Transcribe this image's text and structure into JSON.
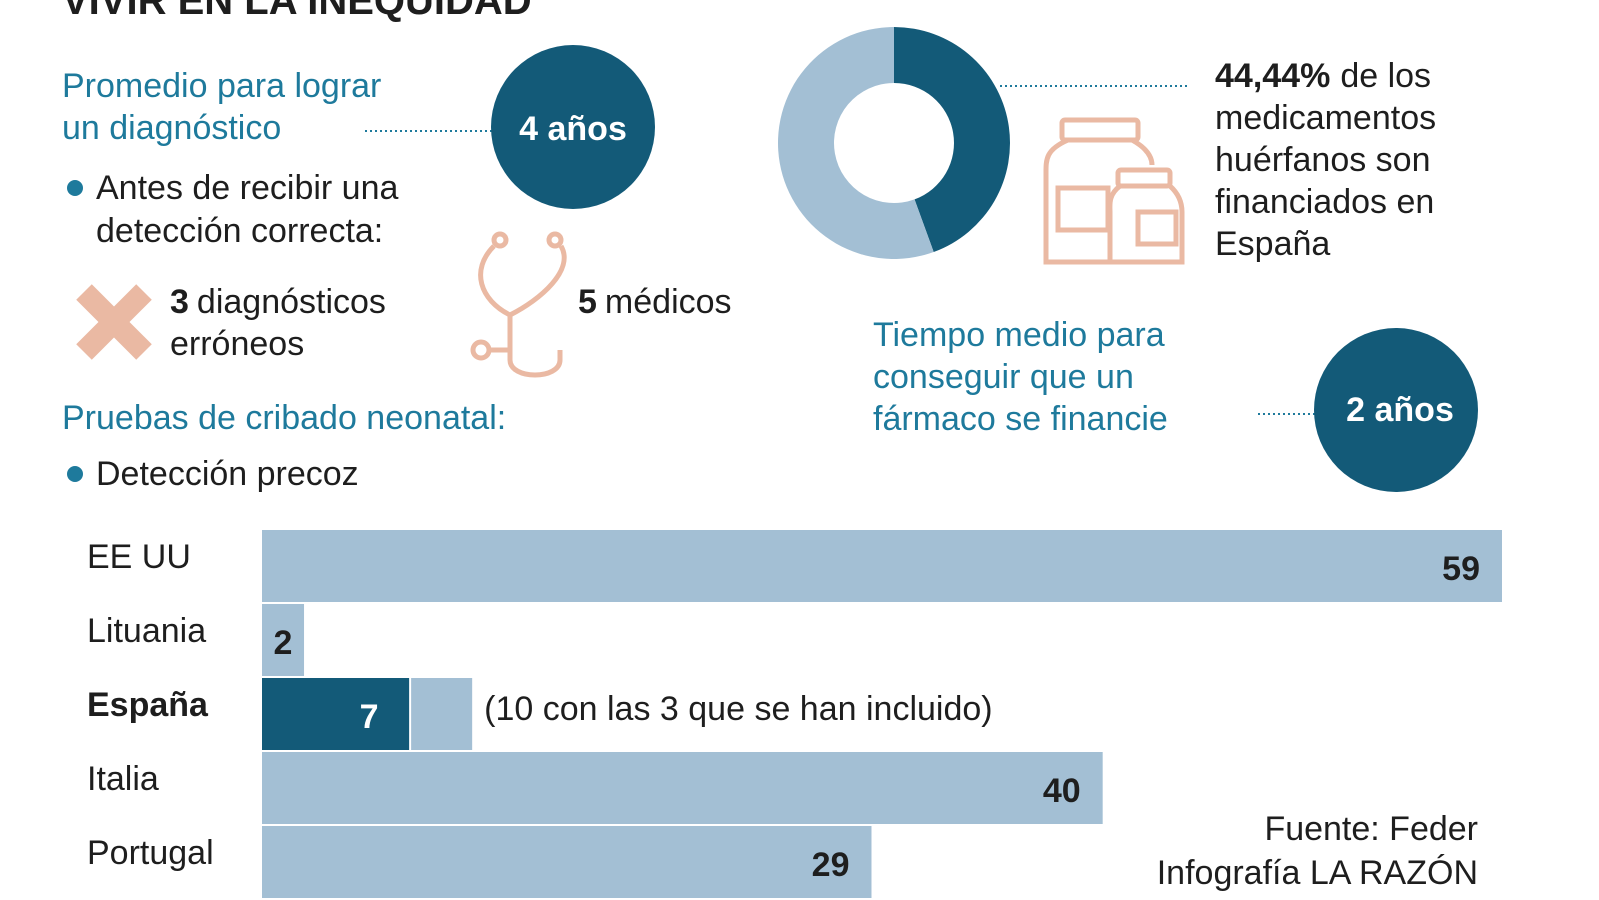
{
  "title": "VIVIR EN LA INEQUIDAD",
  "diagnosis": {
    "heading": [
      "Promedio para lograr",
      "un diagnóstico"
    ],
    "badge": "4 años",
    "bullet": [
      "Antes de recibir una",
      "detección correcta:"
    ],
    "errors_number": "3",
    "errors_text": [
      "diagnósticos",
      "erróneos"
    ],
    "doctors_number": "5",
    "doctors_text": "médicos"
  },
  "screening": {
    "heading": "Pruebas de cribado neonatal:",
    "bullet": "Detección precoz"
  },
  "funding": {
    "lines": [
      "de los",
      "medicamentos",
      "huérfanos son",
      "financiados en",
      "España"
    ]
  },
  "time": {
    "heading": [
      "Tiempo medio para",
      "conseguir que un",
      "fármaco se financie"
    ],
    "badge": "2 años"
  },
  "source": "Fuente: Feder",
  "credit": "Infografía LA RAZÓN",
  "chart_data": [
    {
      "type": "pie",
      "values": [
        44.44,
        55.56
      ],
      "value_labels": [
        "44,44%",
        null
      ],
      "colors": [
        "#135a78",
        "#a3bfd4"
      ],
      "donut": true
    },
    {
      "type": "bar",
      "orientation": "horizontal",
      "categories": [
        "EE UU",
        "Lituania",
        "España",
        "Italia",
        "Portugal"
      ],
      "values": [
        59,
        2,
        7,
        40,
        29
      ],
      "colors": [
        "#a3bfd4",
        "#a3bfd4",
        "#135a78",
        "#a3bfd4",
        "#a3bfd4"
      ],
      "highlight_index": 2,
      "stack": {
        "values": [
          null,
          null,
          3,
          null,
          null
        ],
        "color": "#a3bfd4"
      },
      "annotation": "(10 con las 3 que se han incluido)",
      "xlim": [
        0,
        59
      ]
    }
  ]
}
